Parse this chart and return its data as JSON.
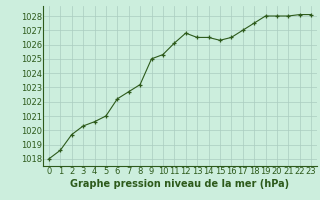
{
  "x": [
    0,
    1,
    2,
    3,
    4,
    5,
    6,
    7,
    8,
    9,
    10,
    11,
    12,
    13,
    14,
    15,
    16,
    17,
    18,
    19,
    20,
    21,
    22,
    23
  ],
  "y": [
    1018.0,
    1018.6,
    1019.7,
    1020.3,
    1020.6,
    1021.0,
    1022.2,
    1022.7,
    1023.2,
    1025.0,
    1025.3,
    1026.1,
    1026.8,
    1026.5,
    1026.5,
    1026.3,
    1026.5,
    1027.0,
    1027.5,
    1028.0,
    1028.0,
    1028.0,
    1028.1,
    1028.1
  ],
  "line_color": "#2d5a1b",
  "marker": "+",
  "bg_color": "#cceedd",
  "grid_color": "#aaccc0",
  "xlabel": "Graphe pression niveau de la mer (hPa)",
  "ylim": [
    1017.5,
    1028.7
  ],
  "yticks": [
    1018,
    1019,
    1020,
    1021,
    1022,
    1023,
    1024,
    1025,
    1026,
    1027,
    1028
  ],
  "xticks": [
    0,
    1,
    2,
    3,
    4,
    5,
    6,
    7,
    8,
    9,
    10,
    11,
    12,
    13,
    14,
    15,
    16,
    17,
    18,
    19,
    20,
    21,
    22,
    23
  ],
  "xlim": [
    -0.5,
    23.5
  ],
  "tick_color": "#2d5a1b",
  "xlabel_fontsize": 7.0,
  "tick_fontsize": 6.0
}
